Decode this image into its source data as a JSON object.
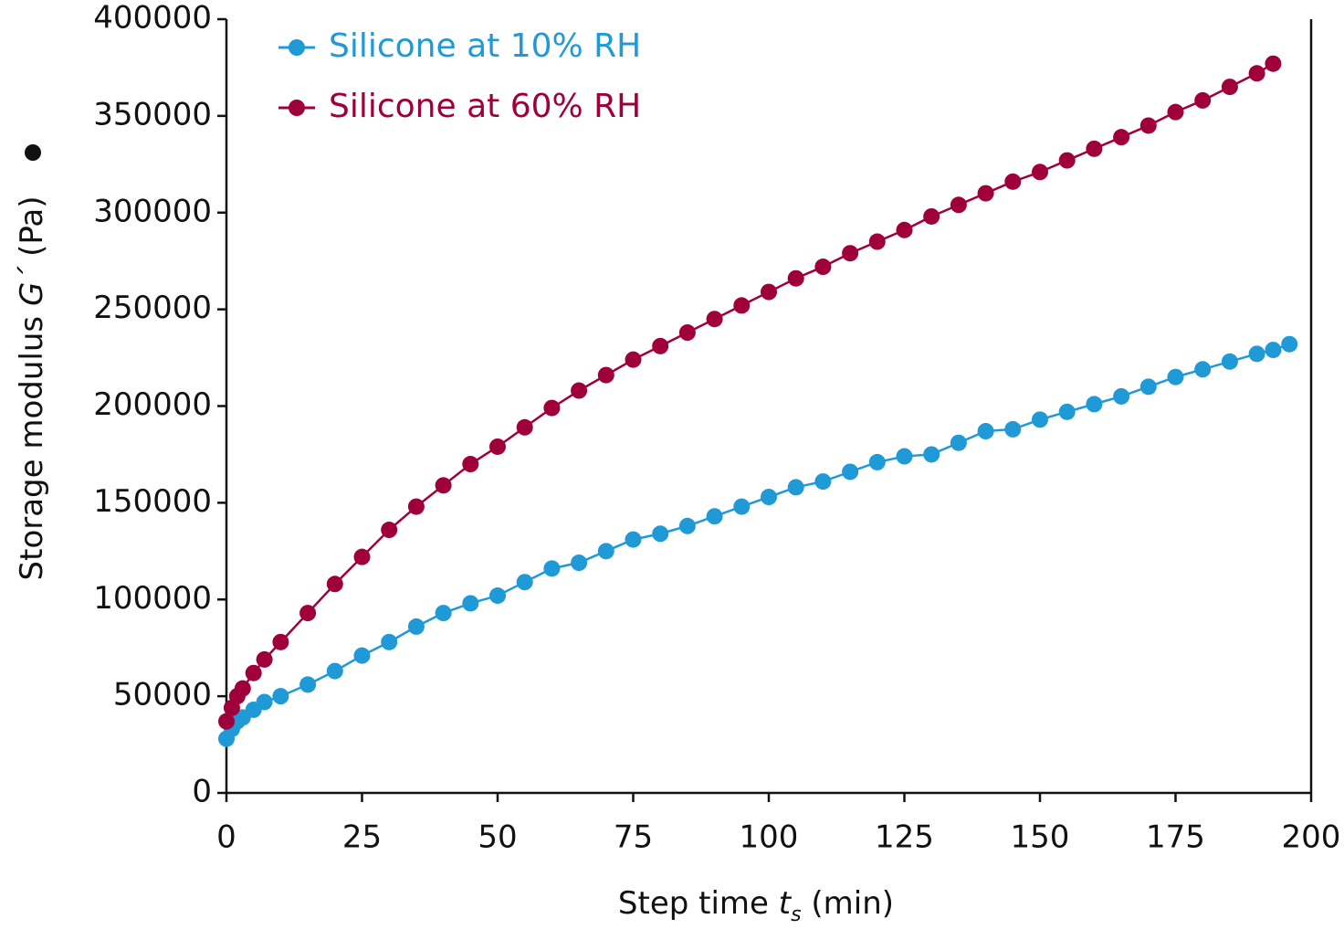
{
  "chart_data": {
    "type": "line",
    "xlabel": {
      "text": "Step time",
      "symbol": "t",
      "subscript": "s",
      "unit": "(min)"
    },
    "ylabel": {
      "text": "Storage modulus",
      "symbol": "G´",
      "unit": "(Pa)"
    },
    "xlim": [
      0,
      200
    ],
    "xticks": [
      0,
      25,
      50,
      75,
      100,
      125,
      150,
      175,
      200
    ],
    "ylim": [
      0,
      400000
    ],
    "yticks": [
      0,
      50000,
      100000,
      150000,
      200000,
      250000,
      300000,
      350000,
      400000
    ],
    "legend": "upper left",
    "series": [
      {
        "name": "Silicone at 10% RH",
        "color": "#1f9ad6",
        "x": [
          0,
          1,
          2,
          3,
          5,
          7,
          10,
          15,
          20,
          25,
          30,
          35,
          40,
          45,
          50,
          55,
          60,
          65,
          70,
          75,
          80,
          85,
          90,
          95,
          100,
          105,
          110,
          115,
          120,
          125,
          130,
          135,
          140,
          145,
          150,
          155,
          160,
          165,
          170,
          175,
          180,
          185,
          190,
          193,
          196
        ],
        "values": [
          28000,
          33000,
          37000,
          39000,
          43000,
          47000,
          50000,
          56000,
          63000,
          71000,
          78000,
          86000,
          93000,
          98000,
          102000,
          109000,
          116000,
          119000,
          125000,
          131000,
          134000,
          138000,
          143000,
          148000,
          153000,
          158000,
          161000,
          166000,
          171000,
          174000,
          175000,
          181000,
          187000,
          188000,
          193000,
          197000,
          201000,
          205000,
          210000,
          215000,
          219000,
          223000,
          227000,
          229000,
          232000
        ]
      },
      {
        "name": "Silicone at 60% RH",
        "color": "#a0003a",
        "x": [
          0,
          1,
          2,
          3,
          5,
          7,
          10,
          15,
          20,
          25,
          30,
          35,
          40,
          45,
          50,
          55,
          60,
          65,
          70,
          75,
          80,
          85,
          90,
          95,
          100,
          105,
          110,
          115,
          120,
          125,
          130,
          135,
          140,
          145,
          150,
          155,
          160,
          165,
          170,
          175,
          180,
          185,
          190,
          193
        ],
        "values": [
          37000,
          44000,
          50000,
          54000,
          62000,
          69000,
          78000,
          93000,
          108000,
          122000,
          136000,
          148000,
          159000,
          170000,
          179000,
          189000,
          199000,
          208000,
          216000,
          224000,
          231000,
          238000,
          245000,
          252000,
          259000,
          266000,
          272000,
          279000,
          285000,
          291000,
          298000,
          304000,
          310000,
          316000,
          321000,
          327000,
          333000,
          339000,
          345000,
          352000,
          358000,
          365000,
          372000,
          377000
        ]
      }
    ]
  }
}
